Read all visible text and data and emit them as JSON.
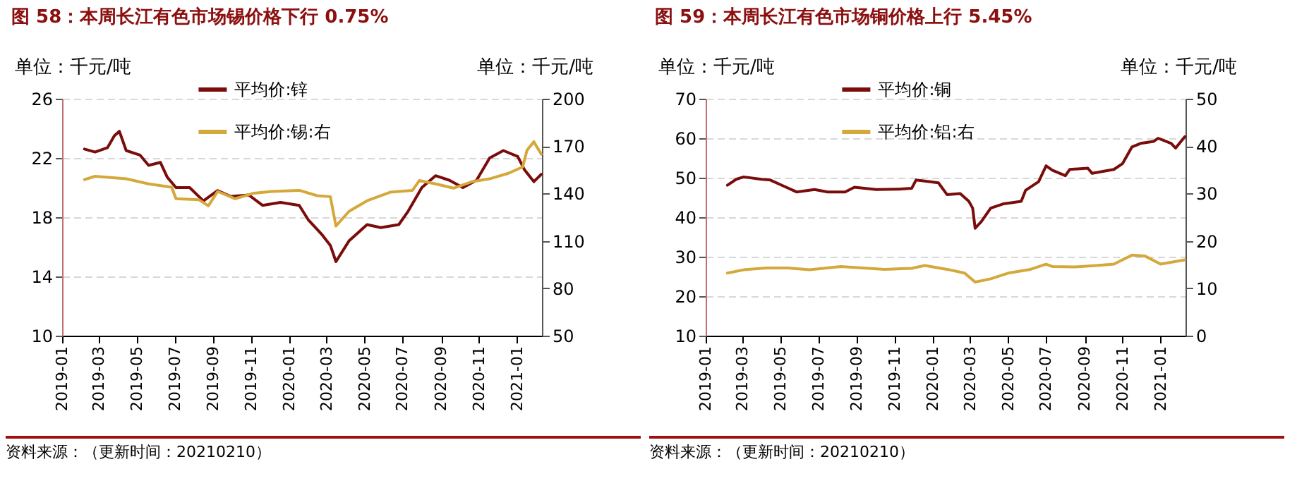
{
  "chart_data": [
    {
      "type": "line",
      "title": "图 58：本周长江有色市场锡价格下行 0.75%",
      "ylabel": "单位：千元/吨",
      "y2label": "单位：千元/吨",
      "annotations": [
        "资料来源：（更新时间：20210210）"
      ],
      "xlim": [
        "2019-01-01",
        "2021-02-10"
      ],
      "xticks": [
        "2019-01",
        "2019-03",
        "2019-05",
        "2019-07",
        "2019-09",
        "2019-11",
        "2020-01",
        "2020-03",
        "2020-05",
        "2020-07",
        "2020-09",
        "2020-11",
        "2021-01"
      ],
      "ylim": [
        10,
        26
      ],
      "yticks": [
        10,
        14,
        18,
        22,
        26
      ],
      "y2lim": [
        50,
        200
      ],
      "y2ticks": [
        50,
        80,
        110,
        140,
        170,
        200
      ],
      "grid": "y",
      "legend": "top",
      "line_style": "solid",
      "marker": "none",
      "series": [
        {
          "name": "平均价:锌",
          "color": "#7b0c0c",
          "x": [
            "2019-02-06",
            "2019-02-23",
            "2019-03-15",
            "2019-03-26",
            "2019-04-03",
            "2019-04-14",
            "2019-05-06",
            "2019-05-20",
            "2019-06-08",
            "2019-06-19",
            "2019-07-03",
            "2019-07-25",
            "2019-08-16",
            "2019-09-08",
            "2019-09-29",
            "2019-10-28",
            "2019-11-19",
            "2019-12-18",
            "2020-01-17",
            "2020-02-01",
            "2020-02-23",
            "2020-03-07",
            "2020-03-16",
            "2020-04-06",
            "2020-05-05",
            "2020-05-27",
            "2020-06-25",
            "2020-07-10",
            "2020-08-01",
            "2020-08-23",
            "2020-09-14",
            "2020-10-06",
            "2020-10-28",
            "2020-11-18",
            "2020-12-10",
            "2021-01-02",
            "2021-01-13",
            "2021-01-28",
            "2021-02-09"
          ],
          "values": [
            22.6,
            22.4,
            22.7,
            23.5,
            23.8,
            22.5,
            22.2,
            21.5,
            21.7,
            20.7,
            20.0,
            20.0,
            19.1,
            19.8,
            19.4,
            19.5,
            18.8,
            19.0,
            18.8,
            17.8,
            16.8,
            16.1,
            15.0,
            16.4,
            17.5,
            17.3,
            17.5,
            18.4,
            20.0,
            20.8,
            20.5,
            20.0,
            20.5,
            22.0,
            22.5,
            22.1,
            21.2,
            20.4,
            20.9
          ]
        },
        {
          "name": "平均价:锡:右",
          "color": "#d4a83a",
          "axis": "y2",
          "x": [
            "2019-02-06",
            "2019-02-23",
            "2019-04-14",
            "2019-05-20",
            "2019-06-26",
            "2019-07-03",
            "2019-08-09",
            "2019-08-24",
            "2019-09-08",
            "2019-10-06",
            "2019-11-05",
            "2019-12-04",
            "2020-01-17",
            "2020-02-15",
            "2020-03-07",
            "2020-03-16",
            "2020-04-06",
            "2020-05-05",
            "2020-06-11",
            "2020-07-17",
            "2020-07-28",
            "2020-08-23",
            "2020-09-21",
            "2020-10-20",
            "2020-11-18",
            "2020-12-18",
            "2021-01-10",
            "2021-01-17",
            "2021-01-28",
            "2021-02-09"
          ],
          "values": [
            148.8,
            150.9,
            149.3,
            146.1,
            144.0,
            136.7,
            136.0,
            132.2,
            141.3,
            136.7,
            140.2,
            141.3,
            142.0,
            138.6,
            138.0,
            119.4,
            128.7,
            135.4,
            140.8,
            142.0,
            148.2,
            146.1,
            143.4,
            147.4,
            149.3,
            152.8,
            156.8,
            167.4,
            172.8,
            164.8
          ]
        }
      ]
    },
    {
      "type": "line",
      "title": "图 59：本周长江有色市场铜价格上行 5.45%",
      "ylabel": "单位：千元/吨",
      "y2label": "单位：千元/吨",
      "annotations": [
        "资料来源：（更新时间：20210210）"
      ],
      "xlim": [
        "2019-01-01",
        "2021-02-10"
      ],
      "xticks": [
        "2019-01",
        "2019-03",
        "2019-05",
        "2019-07",
        "2019-09",
        "2019-11",
        "2020-01",
        "2020-03",
        "2020-05",
        "2020-07",
        "2020-09",
        "2020-11",
        "2021-01"
      ],
      "ylim": [
        10,
        70
      ],
      "yticks": [
        10,
        20,
        30,
        40,
        50,
        60,
        70
      ],
      "y2lim": [
        0,
        50
      ],
      "y2ticks": [
        0,
        10,
        20,
        30,
        40,
        50
      ],
      "grid": "y",
      "legend": "top",
      "line_style": "solid",
      "marker": "none",
      "series": [
        {
          "name": "平均价:铜",
          "color": "#7b0c0c",
          "x": [
            "2019-02-05",
            "2019-02-19",
            "2019-03-03",
            "2019-04-01",
            "2019-04-15",
            "2019-05-06",
            "2019-05-27",
            "2019-06-25",
            "2019-07-16",
            "2019-08-13",
            "2019-08-28",
            "2019-10-02",
            "2019-11-07",
            "2019-11-28",
            "2019-12-05",
            "2019-12-26",
            "2020-01-10",
            "2020-01-24",
            "2020-02-14",
            "2020-02-28",
            "2020-03-05",
            "2020-03-09",
            "2020-03-19",
            "2020-04-03",
            "2020-04-24",
            "2020-05-22",
            "2020-05-29",
            "2020-06-19",
            "2020-07-01",
            "2020-07-11",
            "2020-08-01",
            "2020-08-08",
            "2020-09-06",
            "2020-09-13",
            "2020-10-18",
            "2020-11-01",
            "2020-11-16",
            "2020-11-30",
            "2020-12-21",
            "2020-12-28",
            "2021-01-18",
            "2021-01-25",
            "2021-02-09"
          ],
          "values": [
            48.1,
            49.6,
            50.2,
            49.6,
            49.4,
            47.9,
            46.4,
            47.0,
            46.4,
            46.4,
            47.6,
            47.0,
            47.1,
            47.3,
            49.4,
            49.0,
            48.7,
            45.7,
            46.0,
            44.0,
            42.3,
            37.2,
            38.9,
            42.3,
            43.4,
            44.0,
            46.8,
            49.0,
            53.0,
            51.9,
            50.5,
            52.1,
            52.4,
            51.1,
            52.1,
            53.6,
            57.8,
            58.7,
            59.2,
            60.0,
            58.7,
            57.5,
            60.4
          ]
        },
        {
          "name": "平均价:铝:右",
          "color": "#d4a83a",
          "axis": "y2",
          "x": [
            "2019-02-05",
            "2019-03-03",
            "2019-04-08",
            "2019-05-13",
            "2019-06-17",
            "2019-08-06",
            "2019-09-11",
            "2019-10-16",
            "2019-11-28",
            "2019-12-19",
            "2020-01-24",
            "2020-02-21",
            "2020-03-09",
            "2020-04-03",
            "2020-05-01",
            "2020-06-06",
            "2020-07-01",
            "2020-07-11",
            "2020-08-15",
            "2020-09-20",
            "2020-10-18",
            "2020-11-16",
            "2020-12-07",
            "2021-01-01",
            "2021-02-09"
          ],
          "values": [
            13.2,
            13.9,
            14.3,
            14.3,
            13.9,
            14.6,
            14.3,
            14.0,
            14.2,
            14.8,
            14.0,
            13.2,
            11.3,
            12.0,
            13.2,
            14.0,
            15.1,
            14.6,
            14.5,
            14.8,
            15.1,
            17.0,
            16.8,
            15.1,
            16.0
          ]
        }
      ]
    }
  ]
}
